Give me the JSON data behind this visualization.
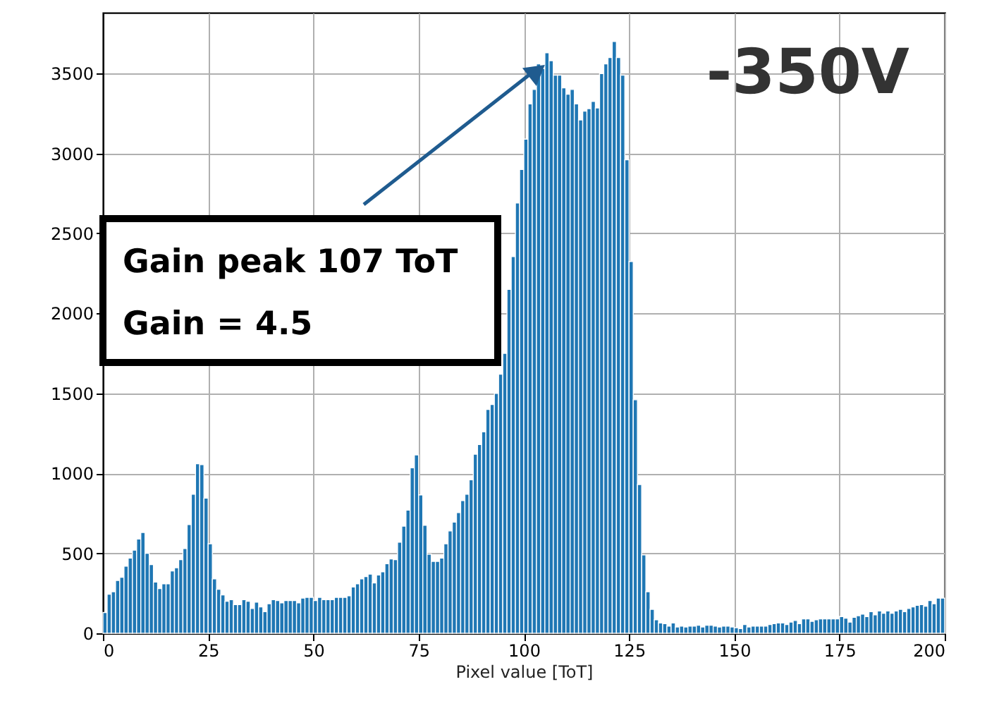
{
  "chart_data": {
    "type": "histogram",
    "xlabel": "Pixel value [ToT]",
    "bins": [
      0,
      1,
      2,
      3,
      4,
      5,
      6,
      7,
      8,
      9,
      10,
      11,
      12,
      13,
      14,
      15,
      16,
      17,
      18,
      19,
      20,
      21,
      22,
      23,
      24,
      25,
      26,
      27,
      28,
      29,
      30,
      31,
      32,
      33,
      34,
      35,
      36,
      37,
      38,
      39,
      40,
      41,
      42,
      43,
      44,
      45,
      46,
      47,
      48,
      49,
      50,
      51,
      52,
      53,
      54,
      55,
      56,
      57,
      58,
      59,
      60,
      61,
      62,
      63,
      64,
      65,
      66,
      67,
      68,
      69,
      70,
      71,
      72,
      73,
      74,
      75,
      76,
      77,
      78,
      79,
      80,
      81,
      82,
      83,
      84,
      85,
      86,
      87,
      88,
      89,
      90,
      91,
      92,
      93,
      94,
      95,
      96,
      97,
      98,
      99,
      100,
      101,
      102,
      103,
      104,
      105,
      106,
      107,
      108,
      109,
      110,
      111,
      112,
      113,
      114,
      115,
      116,
      117,
      118,
      119,
      120,
      121,
      122,
      123,
      124,
      125,
      126,
      127,
      128,
      129,
      130,
      131,
      132,
      133,
      134,
      135,
      136,
      137,
      138,
      139,
      140,
      141,
      142,
      143,
      144,
      145,
      146,
      147,
      148,
      149,
      150,
      151,
      152,
      153,
      154,
      155,
      156,
      157,
      158,
      159,
      160,
      161,
      162,
      163,
      164,
      165,
      166,
      167,
      168,
      169,
      170,
      171,
      172,
      173,
      174,
      175,
      176,
      177,
      178,
      179,
      180,
      181,
      182,
      183,
      184,
      185,
      186,
      187,
      188,
      189,
      190,
      191,
      192,
      193,
      194,
      195,
      196,
      197,
      198,
      199,
      200
    ],
    "values": [
      130,
      245,
      260,
      330,
      350,
      420,
      470,
      520,
      590,
      630,
      500,
      430,
      320,
      280,
      310,
      310,
      390,
      410,
      460,
      530,
      680,
      870,
      1060,
      1055,
      845,
      560,
      340,
      275,
      240,
      200,
      210,
      180,
      180,
      210,
      200,
      155,
      195,
      165,
      135,
      185,
      210,
      205,
      190,
      205,
      205,
      205,
      190,
      220,
      225,
      225,
      205,
      225,
      210,
      210,
      210,
      225,
      225,
      225,
      235,
      290,
      310,
      340,
      355,
      370,
      315,
      365,
      385,
      435,
      465,
      460,
      570,
      670,
      770,
      1035,
      1115,
      865,
      675,
      495,
      450,
      450,
      470,
      560,
      640,
      695,
      755,
      830,
      870,
      960,
      1120,
      1180,
      1260,
      1400,
      1430,
      1500,
      1620,
      1750,
      2150,
      2355,
      2690,
      2900,
      3090,
      3310,
      3400,
      3560,
      3530,
      3630,
      3580,
      3490,
      3490,
      3410,
      3370,
      3400,
      3310,
      3210,
      3265,
      3280,
      3325,
      3285,
      3500,
      3560,
      3600,
      3700,
      3600,
      3490,
      2960,
      2325,
      1460,
      930,
      490,
      260,
      150,
      85,
      65,
      60,
      45,
      65,
      40,
      45,
      40,
      45,
      45,
      50,
      40,
      50,
      50,
      45,
      40,
      45,
      45,
      40,
      35,
      30,
      55,
      40,
      45,
      45,
      45,
      45,
      55,
      60,
      65,
      65,
      55,
      70,
      80,
      60,
      90,
      90,
      75,
      85,
      90,
      90,
      90,
      90,
      90,
      105,
      95,
      70,
      100,
      110,
      120,
      105,
      135,
      115,
      140,
      125,
      140,
      125,
      140,
      150,
      135,
      155,
      165,
      175,
      180,
      170,
      205,
      185,
      220,
      220
    ],
    "color": "#1f77b4",
    "xlim": [
      0,
      200
    ],
    "xticks": [
      0,
      25,
      50,
      75,
      100,
      125,
      150,
      175,
      200
    ],
    "ylim": [
      0,
      3880
    ],
    "yticks": [
      0,
      500,
      1000,
      1500,
      2000,
      2500,
      3000,
      3500
    ],
    "grid": true,
    "annotations": [
      {
        "text": "Gain peak 107 ToT",
        "x": 104.5,
        "y": 3560
      },
      "Gain = 4.5",
      "-350V"
    ]
  }
}
